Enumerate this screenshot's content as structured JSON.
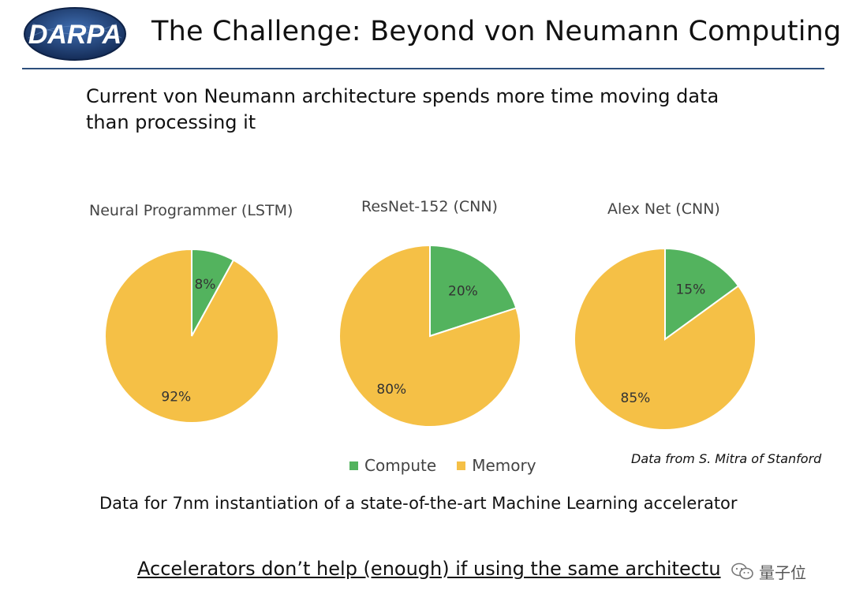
{
  "header": {
    "logo_text": "DARPA",
    "title": "The Challenge: Beyond von Neumann Computing"
  },
  "intro": {
    "line1": "Current von Neumann architecture spends more time moving data",
    "line2": "than processing it"
  },
  "colors": {
    "compute": "#53b35e",
    "memory": "#f5c046",
    "rule": "#2d4f7c",
    "logo_dark": "#1b3c73"
  },
  "chart_data": [
    {
      "type": "pie",
      "title": "Neural Programmer (LSTM)",
      "categories": [
        "Compute",
        "Memory"
      ],
      "values": [
        8,
        92
      ],
      "labels": [
        "8%",
        "92%"
      ]
    },
    {
      "type": "pie",
      "title": "ResNet-152 (CNN)",
      "categories": [
        "Compute",
        "Memory"
      ],
      "values": [
        20,
        80
      ],
      "labels": [
        "20%",
        "80%"
      ]
    },
    {
      "type": "pie",
      "title": "Alex Net (CNN)",
      "categories": [
        "Compute",
        "Memory"
      ],
      "values": [
        15,
        85
      ],
      "labels": [
        "15%",
        "85%"
      ]
    }
  ],
  "legend": {
    "compute_label": "Compute",
    "memory_label": "Memory"
  },
  "source": "Data from S. Mitra of Stanford",
  "note": "Data for 7nm instantiation of a state-of-the-art Machine Learning accelerator",
  "footer": "Accelerators don’t help (enough) if using the same architectu",
  "watermark": {
    "text": "量子位",
    "icon": "wechat-icon"
  }
}
